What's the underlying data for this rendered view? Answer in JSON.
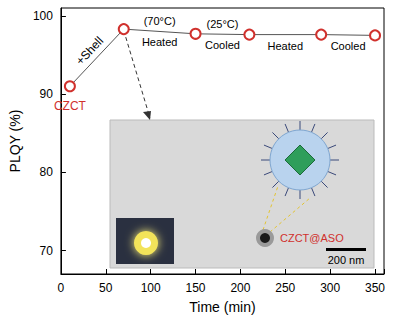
{
  "chart_data": {
    "type": "line",
    "xlabel": "Time (min)",
    "ylabel": "PLQY (%)",
    "x": [
      10,
      70,
      150,
      210,
      290,
      350
    ],
    "series": [
      {
        "values": [
          91,
          98.3,
          97.7,
          97.6,
          97.6,
          97.5
        ],
        "color": "#d0312d",
        "marker": "circle"
      }
    ],
    "point_labels": [
      "CZCT",
      null,
      null,
      null,
      null,
      null
    ],
    "segment_labels": [
      [
        "+Shell"
      ],
      [
        "(70°C)",
        "Heated"
      ],
      [
        "(25°C)",
        "Cooled"
      ],
      [
        "Heated"
      ],
      [
        "Cooled"
      ]
    ],
    "inset": {
      "label": "CZCT@ASO",
      "scale_bar": "200 nm"
    },
    "xlim": [
      0,
      360
    ],
    "xticks": [
      0,
      50,
      100,
      150,
      200,
      250,
      300,
      350
    ],
    "ylim": [
      67,
      101
    ],
    "yticks": [
      70,
      80,
      90,
      100
    ],
    "grid": false
  }
}
